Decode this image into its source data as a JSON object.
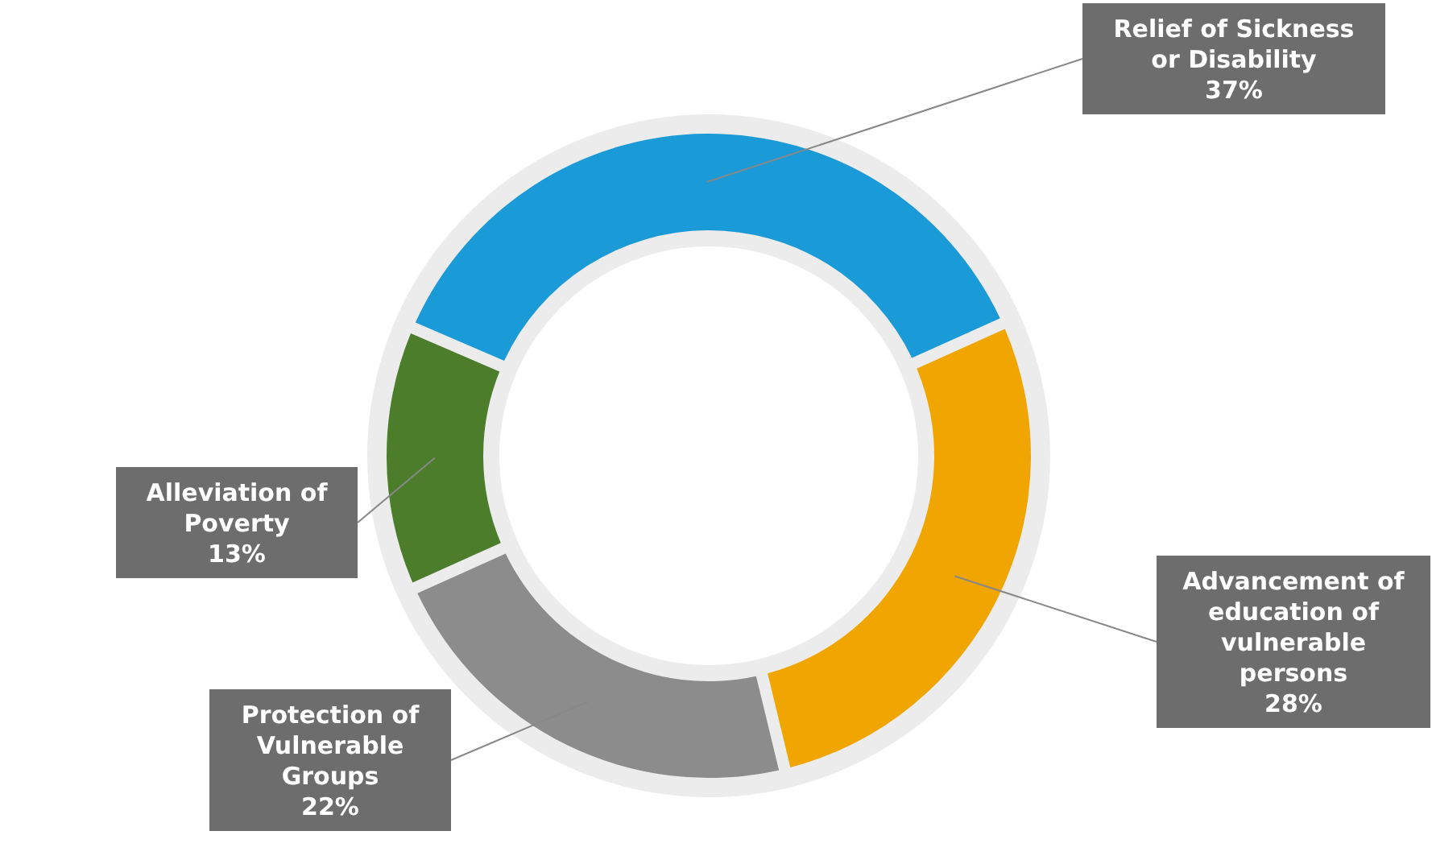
{
  "chart_data": {
    "type": "donut",
    "categories": [
      "Relief of Sickness or Disability",
      "Advancement of education of vulnerable persons",
      "Protection of Vulnerable Groups",
      "Alleviation of Poverty"
    ],
    "values": [
      37,
      28,
      22,
      13
    ],
    "value_labels": [
      "37%",
      "28%",
      "22%",
      "13%"
    ],
    "colors": [
      "#1b9ad8",
      "#f0a500",
      "#8c8c8c",
      "#4b7d2b"
    ]
  }
}
